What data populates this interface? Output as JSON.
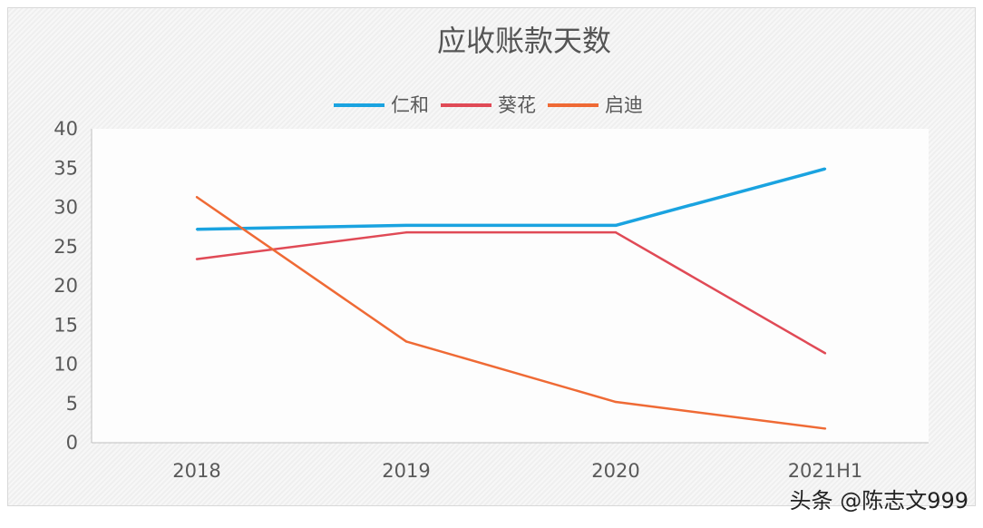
{
  "chart_data": {
    "type": "line",
    "title": "应收账款天数",
    "categories": [
      "2018",
      "2019",
      "2020",
      "2021H1"
    ],
    "series": [
      {
        "name": "仁和",
        "color": "#1aa3e0",
        "values": [
          27.2,
          27.7,
          27.7,
          34.9
        ]
      },
      {
        "name": "葵花",
        "color": "#e04a56",
        "values": [
          23.4,
          26.8,
          26.8,
          11.4
        ]
      },
      {
        "name": "启迪",
        "color": "#ef6a35",
        "values": [
          31.3,
          12.9,
          5.2,
          1.8
        ]
      }
    ],
    "ylim": [
      0,
      40
    ],
    "yticks": [
      0,
      5,
      10,
      15,
      20,
      25,
      30,
      35,
      40
    ],
    "grid": false,
    "legend": "top"
  },
  "watermark": "头条 @陈志文999"
}
